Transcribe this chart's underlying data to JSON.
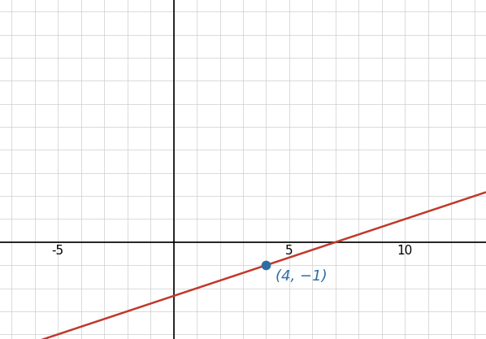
{
  "point": [
    4,
    -1
  ],
  "slope": 0.3333333333333333,
  "intercept": -2.3333333333333335,
  "line_color": "#c0392b",
  "line_width": 1.8,
  "point_color": "#2e6da4",
  "point_size": 55,
  "label_text": "(4, −1)",
  "label_fontsize": 13,
  "xlim": [
    -7.5,
    13.5
  ],
  "ylim": [
    -4.2,
    10.5
  ],
  "grid_color": "#cccccc",
  "grid_linewidth": 0.5,
  "background_color": "#ffffff",
  "axis_linewidth": 1.2,
  "tick_labelsize": 11
}
